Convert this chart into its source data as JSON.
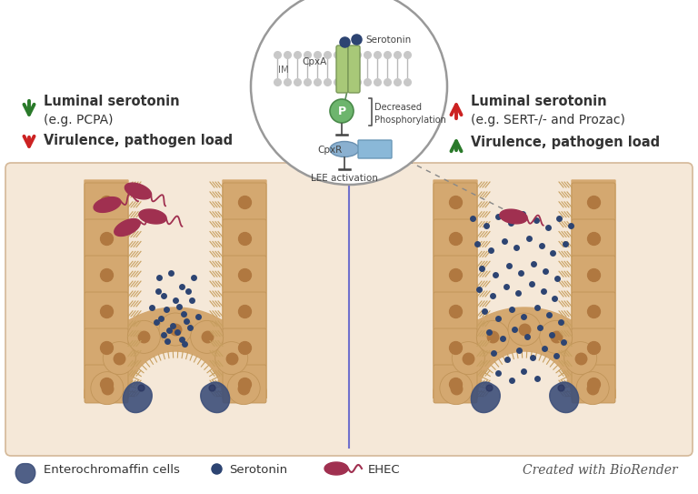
{
  "bg_color": "#f5e8d8",
  "bg_outer": "#ffffff",
  "title_left_line1": "Luminal serotonin",
  "title_left_line2": "(e.g. PCPA)",
  "title_left_line3": "Virulence, pathogen load",
  "title_right_line1": "Luminal serotonin",
  "title_right_line2": "(e.g. SERT-/- and Prozac)",
  "title_right_line3": "Virulence, pathogen load",
  "arrow_down_color": "#2a7a2a",
  "arrow_up_color": "#cc2222",
  "circle_outline": "#888888",
  "membrane_color": "#a8c87a",
  "phospho_color": "#6db56d",
  "cpxr_color": "#7a9cc0",
  "lee_color": "#8ab8d8",
  "serotonin_dot_color": "#2d4472",
  "divider_color": "#7070cc",
  "gut_wall_color": "#d4a870",
  "gut_cell_dot": "#b07840",
  "ec_cell_color": "#3d4f7a",
  "ec_cell_inner": "#2a3560",
  "ehec_color": "#a03050",
  "footer_text": "Created with BioRender",
  "legend_ec_text": "Enterochromaffin cells",
  "legend_serotonin_text": "Serotonin",
  "legend_ehec_text": "EHEC",
  "cpxA_text": "CpxA",
  "serotonin_label": "Serotonin",
  "IM_text": "IM",
  "P_text": "P",
  "decreased_text1": "Decreased",
  "decreased_text2": "Phosphorylation",
  "cpxR_text": "CpxR",
  "lee_text": "LEE activation",
  "left_dots_x": [
    175,
    188,
    200,
    213,
    180,
    207,
    193,
    183,
    197,
    211,
    177,
    202,
    190,
    205,
    180,
    195,
    209,
    184,
    200,
    174,
    167,
    218,
    186,
    203,
    172
  ],
  "left_dots_y": [
    305,
    300,
    315,
    305,
    325,
    320,
    330,
    340,
    337,
    330,
    350,
    345,
    358,
    353,
    368,
    365,
    360,
    375,
    373,
    320,
    338,
    348,
    363,
    378,
    354
  ],
  "right_dots_x": [
    520,
    535,
    548,
    562,
    575,
    590,
    603,
    615,
    628,
    525,
    540,
    555,
    568,
    582,
    596,
    608,
    622,
    530,
    545,
    560,
    573,
    587,
    600,
    613,
    527,
    542,
    557,
    570,
    585,
    598,
    610,
    533,
    548,
    563,
    576,
    591,
    604,
    617,
    538,
    553,
    566,
    580,
    594,
    607,
    620,
    543,
    558,
    571,
    586,
    599,
    612,
    548,
    563,
    576,
    591
  ],
  "right_dots_y": [
    240,
    248,
    238,
    245,
    235,
    242,
    250,
    240,
    248,
    268,
    275,
    265,
    272,
    262,
    270,
    278,
    268,
    295,
    302,
    292,
    300,
    290,
    298,
    306,
    318,
    325,
    315,
    322,
    312,
    320,
    328,
    342,
    350,
    340,
    348,
    338,
    346,
    354,
    365,
    372,
    362,
    370,
    360,
    368,
    376,
    388,
    395,
    385,
    393,
    383,
    391,
    410,
    418,
    408,
    416
  ]
}
